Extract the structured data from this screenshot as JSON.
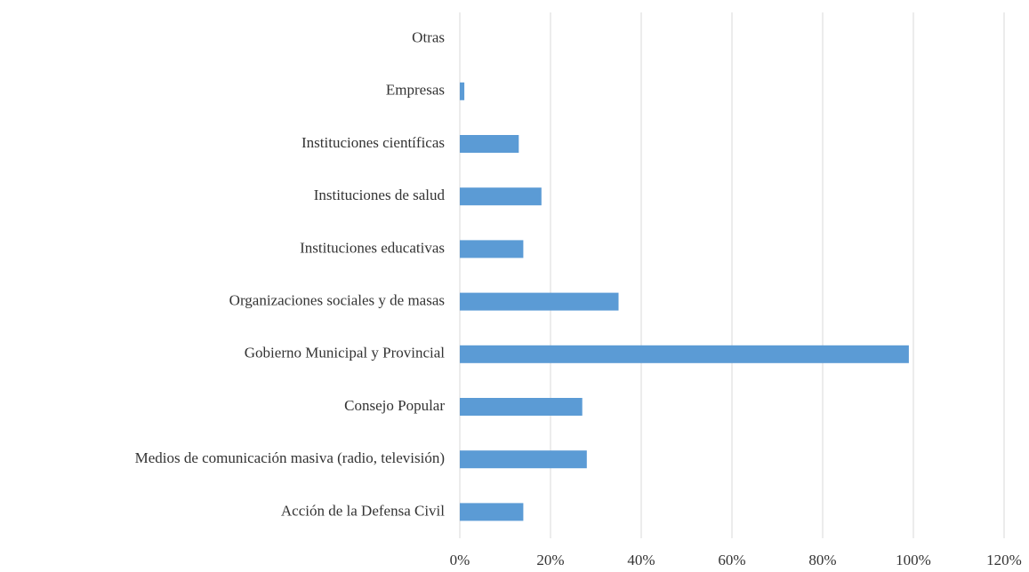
{
  "chart_data": {
    "type": "hbar",
    "categories": [
      "Acción de la Defensa Civil",
      "Medios de comunicación masiva (radio, televisión)",
      "Consejo Popular",
      "Gobierno Municipal y Provincial",
      "Organizaciones sociales y de masas",
      "Instituciones educativas",
      "Instituciones de salud",
      "Instituciones científicas",
      "Empresas",
      "Otras"
    ],
    "values": [
      14,
      28,
      27,
      99,
      35,
      14,
      18,
      13,
      1,
      0
    ],
    "color": "#5b9bd5",
    "xlim": [
      0,
      120
    ],
    "xticks": [
      {
        "value": 0,
        "label": "0%"
      },
      {
        "value": 20,
        "label": "20%"
      },
      {
        "value": 40,
        "label": "40%"
      },
      {
        "value": 60,
        "label": "60%"
      },
      {
        "value": 80,
        "label": "80%"
      },
      {
        "value": 100,
        "label": "100%"
      },
      {
        "value": 120,
        "label": "120%"
      }
    ],
    "grid": true
  }
}
